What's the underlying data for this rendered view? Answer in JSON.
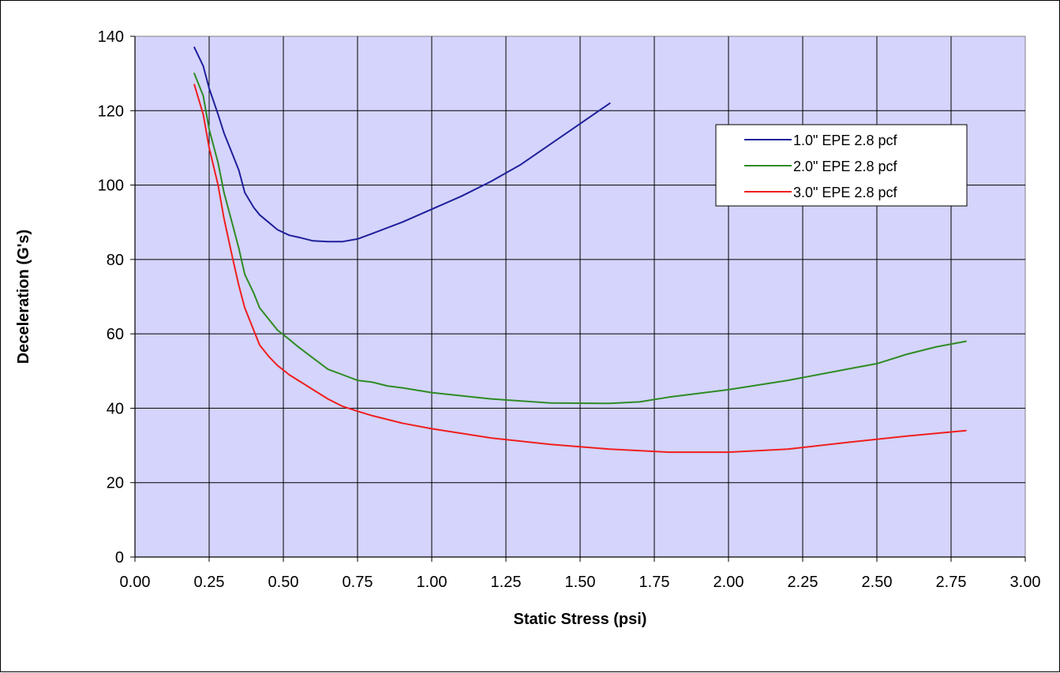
{
  "chart_data": {
    "type": "line",
    "title": "",
    "xlabel": "Static Stress (psi)",
    "ylabel": "Deceleration (G's)",
    "xlim": [
      0,
      3
    ],
    "ylim": [
      0,
      140
    ],
    "x_ticks": [
      "0.00",
      "0.25",
      "0.50",
      "0.75",
      "1.00",
      "1.25",
      "1.50",
      "1.75",
      "2.00",
      "2.25",
      "2.50",
      "2.75",
      "3.00"
    ],
    "y_ticks": [
      "0",
      "20",
      "40",
      "60",
      "80",
      "100",
      "120",
      "140"
    ],
    "grid": true,
    "legend_position": "top-right",
    "plot_background": "#D4D4FC",
    "series": [
      {
        "name": "1.0\" EPE 2.8 pcf",
        "color": "#1F1F9B",
        "points": [
          [
            0.2,
            137
          ],
          [
            0.23,
            132
          ],
          [
            0.25,
            126
          ],
          [
            0.28,
            119
          ],
          [
            0.3,
            114
          ],
          [
            0.33,
            108
          ],
          [
            0.35,
            104
          ],
          [
            0.37,
            98
          ],
          [
            0.4,
            94
          ],
          [
            0.42,
            92
          ],
          [
            0.45,
            90
          ],
          [
            0.48,
            88
          ],
          [
            0.52,
            86.5
          ],
          [
            0.55,
            86
          ],
          [
            0.6,
            85
          ],
          [
            0.65,
            84.8
          ],
          [
            0.7,
            84.8
          ],
          [
            0.75,
            85.5
          ],
          [
            0.8,
            87
          ],
          [
            0.9,
            90
          ],
          [
            1.0,
            93.5
          ],
          [
            1.1,
            97
          ],
          [
            1.2,
            101
          ],
          [
            1.3,
            105.5
          ],
          [
            1.4,
            111
          ],
          [
            1.5,
            116.5
          ],
          [
            1.6,
            122
          ]
        ]
      },
      {
        "name": "2.0\" EPE 2.8 pcf",
        "color": "#2E8B24",
        "points": [
          [
            0.2,
            130
          ],
          [
            0.23,
            124
          ],
          [
            0.25,
            115
          ],
          [
            0.28,
            106
          ],
          [
            0.3,
            98
          ],
          [
            0.33,
            89
          ],
          [
            0.35,
            83
          ],
          [
            0.37,
            76
          ],
          [
            0.4,
            71
          ],
          [
            0.42,
            67
          ],
          [
            0.45,
            64
          ],
          [
            0.48,
            61
          ],
          [
            0.52,
            58.5
          ],
          [
            0.55,
            56.5
          ],
          [
            0.6,
            53.5
          ],
          [
            0.65,
            50.5
          ],
          [
            0.7,
            49
          ],
          [
            0.75,
            47.5
          ],
          [
            0.8,
            47
          ],
          [
            0.85,
            46
          ],
          [
            0.9,
            45.5
          ],
          [
            1.0,
            44.2
          ],
          [
            1.2,
            42.5
          ],
          [
            1.4,
            41.4
          ],
          [
            1.6,
            41.3
          ],
          [
            1.7,
            41.7
          ],
          [
            1.8,
            43
          ],
          [
            2.0,
            45
          ],
          [
            2.2,
            47.5
          ],
          [
            2.4,
            50.5
          ],
          [
            2.5,
            52
          ],
          [
            2.6,
            54.5
          ],
          [
            2.7,
            56.5
          ],
          [
            2.8,
            58
          ]
        ]
      },
      {
        "name": "3.0\" EPE 2.8 pcf",
        "color": "#F01E1E",
        "points": [
          [
            0.2,
            127
          ],
          [
            0.23,
            119
          ],
          [
            0.25,
            110
          ],
          [
            0.28,
            100
          ],
          [
            0.3,
            91
          ],
          [
            0.33,
            80
          ],
          [
            0.35,
            73
          ],
          [
            0.37,
            67
          ],
          [
            0.4,
            61
          ],
          [
            0.42,
            57
          ],
          [
            0.45,
            54
          ],
          [
            0.48,
            51.5
          ],
          [
            0.52,
            49
          ],
          [
            0.55,
            47.5
          ],
          [
            0.6,
            45
          ],
          [
            0.65,
            42.5
          ],
          [
            0.7,
            40.5
          ],
          [
            0.75,
            39.2
          ],
          [
            0.8,
            38
          ],
          [
            0.9,
            36
          ],
          [
            1.0,
            34.5
          ],
          [
            1.2,
            32
          ],
          [
            1.4,
            30.3
          ],
          [
            1.6,
            29
          ],
          [
            1.8,
            28.2
          ],
          [
            2.0,
            28.2
          ],
          [
            2.2,
            29
          ],
          [
            2.4,
            30.8
          ],
          [
            2.6,
            32.5
          ],
          [
            2.8,
            34
          ]
        ]
      }
    ]
  }
}
